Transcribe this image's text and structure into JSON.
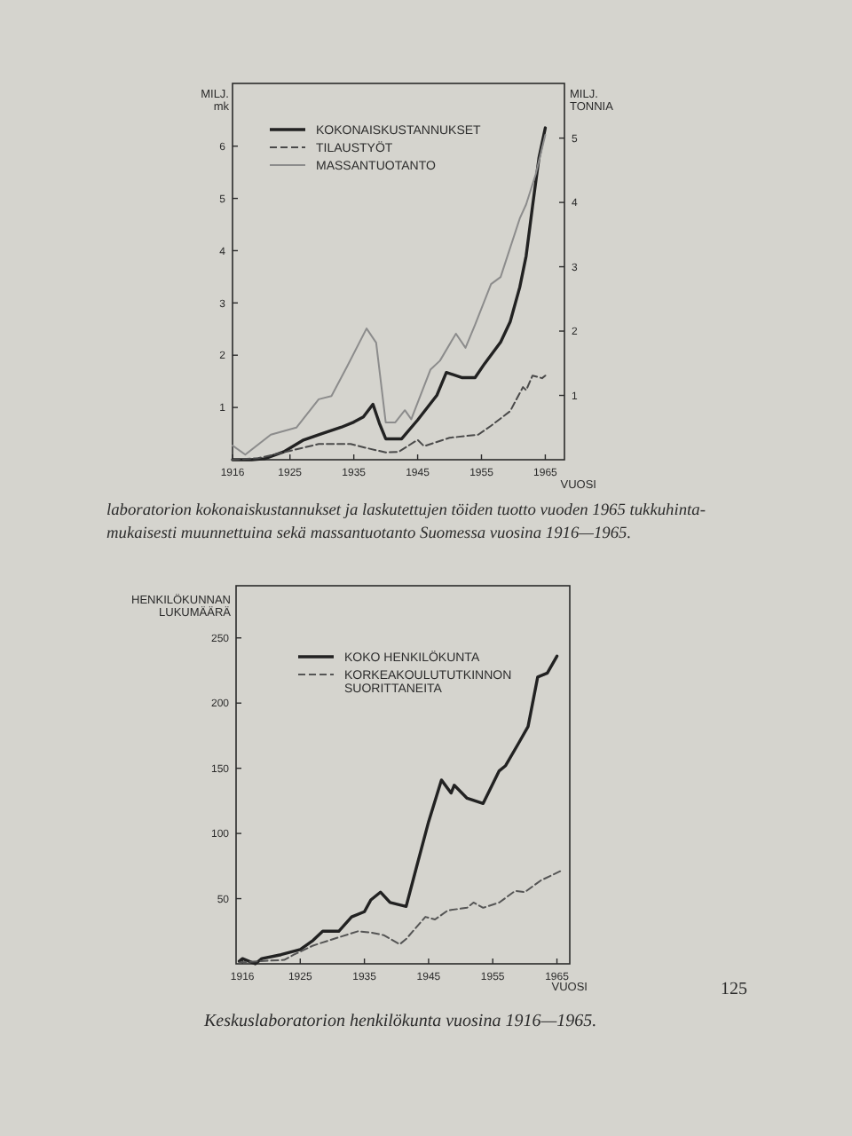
{
  "chart_data": [
    {
      "type": "line",
      "ylabel": "MILJ. mk",
      "y2label": "MILJ. TONNIA",
      "xlabel": "VUOSI",
      "legend": "top left",
      "xlim": [
        1916,
        1968
      ],
      "xticks": [
        1916,
        1925,
        1935,
        1945,
        1955,
        1965
      ],
      "ylim": [
        0,
        7.2
      ],
      "yticks": [
        1,
        2,
        3,
        4,
        5,
        6
      ],
      "y2lim": [
        0,
        5.85
      ],
      "y2ticks": [
        1,
        2,
        3,
        4,
        5
      ],
      "series": [
        {
          "name": "KOKONAISKUSTANNUKSET",
          "color": "#222222",
          "line_style": "solid",
          "x": [
            1916,
            1919,
            1921,
            1924,
            1927,
            1930,
            1933,
            1935,
            1936.5,
            1938,
            1939,
            1940,
            1942.5,
            1945,
            1948,
            1949.5,
            1952,
            1954,
            1955.5,
            1958,
            1959.5,
            1961,
            1962,
            1963,
            1964,
            1965
          ],
          "values": [
            0,
            0,
            0.02,
            0.15,
            0.37,
            0.5,
            0.62,
            0.72,
            0.82,
            1.06,
            0.7,
            0.4,
            0.4,
            0.76,
            1.23,
            1.67,
            1.57,
            1.57,
            1.84,
            2.25,
            2.64,
            3.3,
            3.9,
            4.85,
            5.77,
            6.35
          ]
        },
        {
          "name": "TILAUSTYÖT",
          "color": "#4a4a4a",
          "line_style": "dashed",
          "x": [
            1916,
            1920,
            1924,
            1929.5,
            1934.5,
            1937.5,
            1940,
            1942,
            1945,
            1946,
            1950,
            1954.5,
            1956.5,
            1959.5,
            1961.5,
            1962,
            1963,
            1964.5,
            1965
          ],
          "values": [
            0,
            0.03,
            0.14,
            0.3,
            0.3,
            0.21,
            0.14,
            0.15,
            0.38,
            0.26,
            0.42,
            0.48,
            0.65,
            0.93,
            1.39,
            1.33,
            1.61,
            1.56,
            1.61
          ]
        },
        {
          "name": "MASSANTUOTANTO",
          "color": "#8c8c8c",
          "line_style": "solid",
          "axis": "y2",
          "x": [
            1916,
            1918,
            1922,
            1926,
            1929.5,
            1931.5,
            1934,
            1937,
            1938.5,
            1940,
            1941.5,
            1943,
            1944,
            1947,
            1948.5,
            1951,
            1952.5,
            1954,
            1956.5,
            1958,
            1961,
            1962,
            1963.5,
            1965
          ],
          "values": [
            0.22,
            0.08,
            0.39,
            0.5,
            0.94,
            0.99,
            1.46,
            2.04,
            1.82,
            0.58,
            0.58,
            0.77,
            0.63,
            1.4,
            1.54,
            1.96,
            1.74,
            2.1,
            2.73,
            2.84,
            3.75,
            3.97,
            4.44,
            5.05
          ]
        }
      ],
      "annotations": [
        "laboratorion kokonaiskustannukset ja laskutettujen töiden tuotto vuoden 1965 tukkuhinta-",
        "mukaisesti muunnettuina sekä massantuotanto Suomessa vuosina 1916—1965."
      ]
    },
    {
      "type": "line",
      "ylabel": "HENKILÖKUNNAN LUKUMÄÄRÄ",
      "xlabel": "VUOSI",
      "legend": "top left",
      "xlim": [
        1915,
        1967
      ],
      "xticks": [
        1916,
        1925,
        1935,
        1945,
        1955,
        1965
      ],
      "ylim": [
        0,
        290
      ],
      "yticks": [
        50,
        100,
        150,
        200,
        250
      ],
      "series": [
        {
          "name": "KOKO HENKILÖKUNTA",
          "color": "#222222",
          "line_style": "solid",
          "x": [
            1915.5,
            1916,
            1918,
            1919,
            1922,
            1925,
            1927,
            1928.5,
            1931,
            1933,
            1935,
            1936,
            1937.5,
            1939,
            1941.5,
            1943,
            1945,
            1947,
            1948.5,
            1949,
            1951,
            1953.5,
            1956,
            1957,
            1959,
            1960.5,
            1962,
            1963.5,
            1965
          ],
          "values": [
            2,
            4,
            0,
            4,
            7,
            11,
            18,
            25,
            25,
            36,
            40,
            49,
            55,
            47,
            44,
            72,
            109,
            141,
            131,
            137,
            127,
            123,
            148,
            152,
            169,
            182,
            220,
            223,
            236
          ]
        },
        {
          "name": "KORKEAKOULUTUTKINNON SUORITTANEITA",
          "color": "#555555",
          "line_style": "dashed",
          "x": [
            1915.5,
            1918.5,
            1922.5,
            1924,
            1927,
            1929.5,
            1934,
            1936,
            1938,
            1940.5,
            1941.5,
            1944.5,
            1946,
            1948,
            1951,
            1952,
            1953.5,
            1956,
            1958.5,
            1960,
            1962.5,
            1965.5
          ],
          "values": [
            1,
            2,
            3,
            7,
            14,
            18,
            25,
            24,
            22,
            15,
            19,
            36,
            34,
            41,
            43,
            47,
            43,
            47,
            56,
            55,
            64,
            71
          ]
        }
      ],
      "annotations": [
        "Keskuslaboratorion henkilökunta vuosina 1916—1965.",
        "125"
      ]
    }
  ]
}
